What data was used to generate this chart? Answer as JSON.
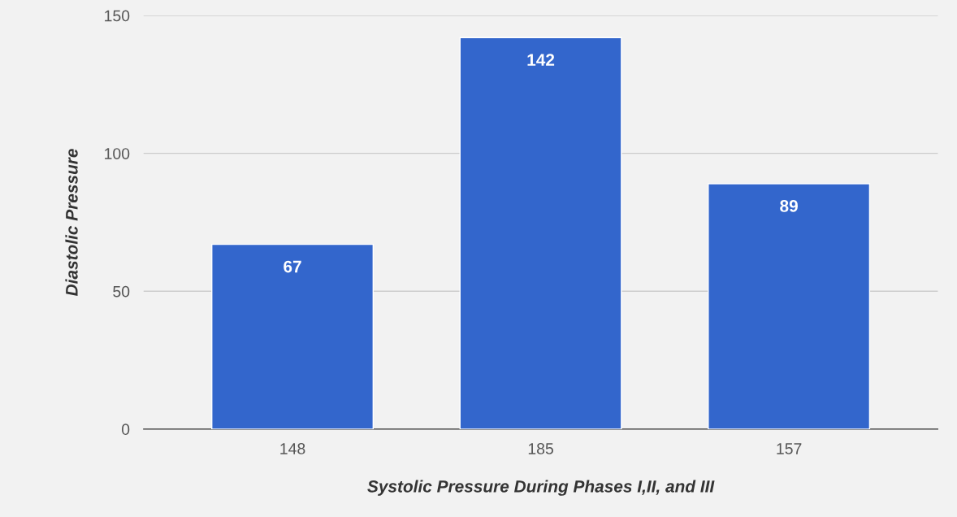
{
  "chart_data": {
    "type": "bar",
    "xlabel": "Systolic Pressure During Phases I,II, and III",
    "ylabel": "Diastolic Pressure",
    "categories": [
      "148",
      "185",
      "157"
    ],
    "values": [
      67,
      142,
      89
    ],
    "color": "#3366cc",
    "ylim": [
      0,
      150
    ],
    "yticks": [
      0,
      50,
      100,
      150
    ],
    "grid": "y",
    "data_labels": true
  }
}
